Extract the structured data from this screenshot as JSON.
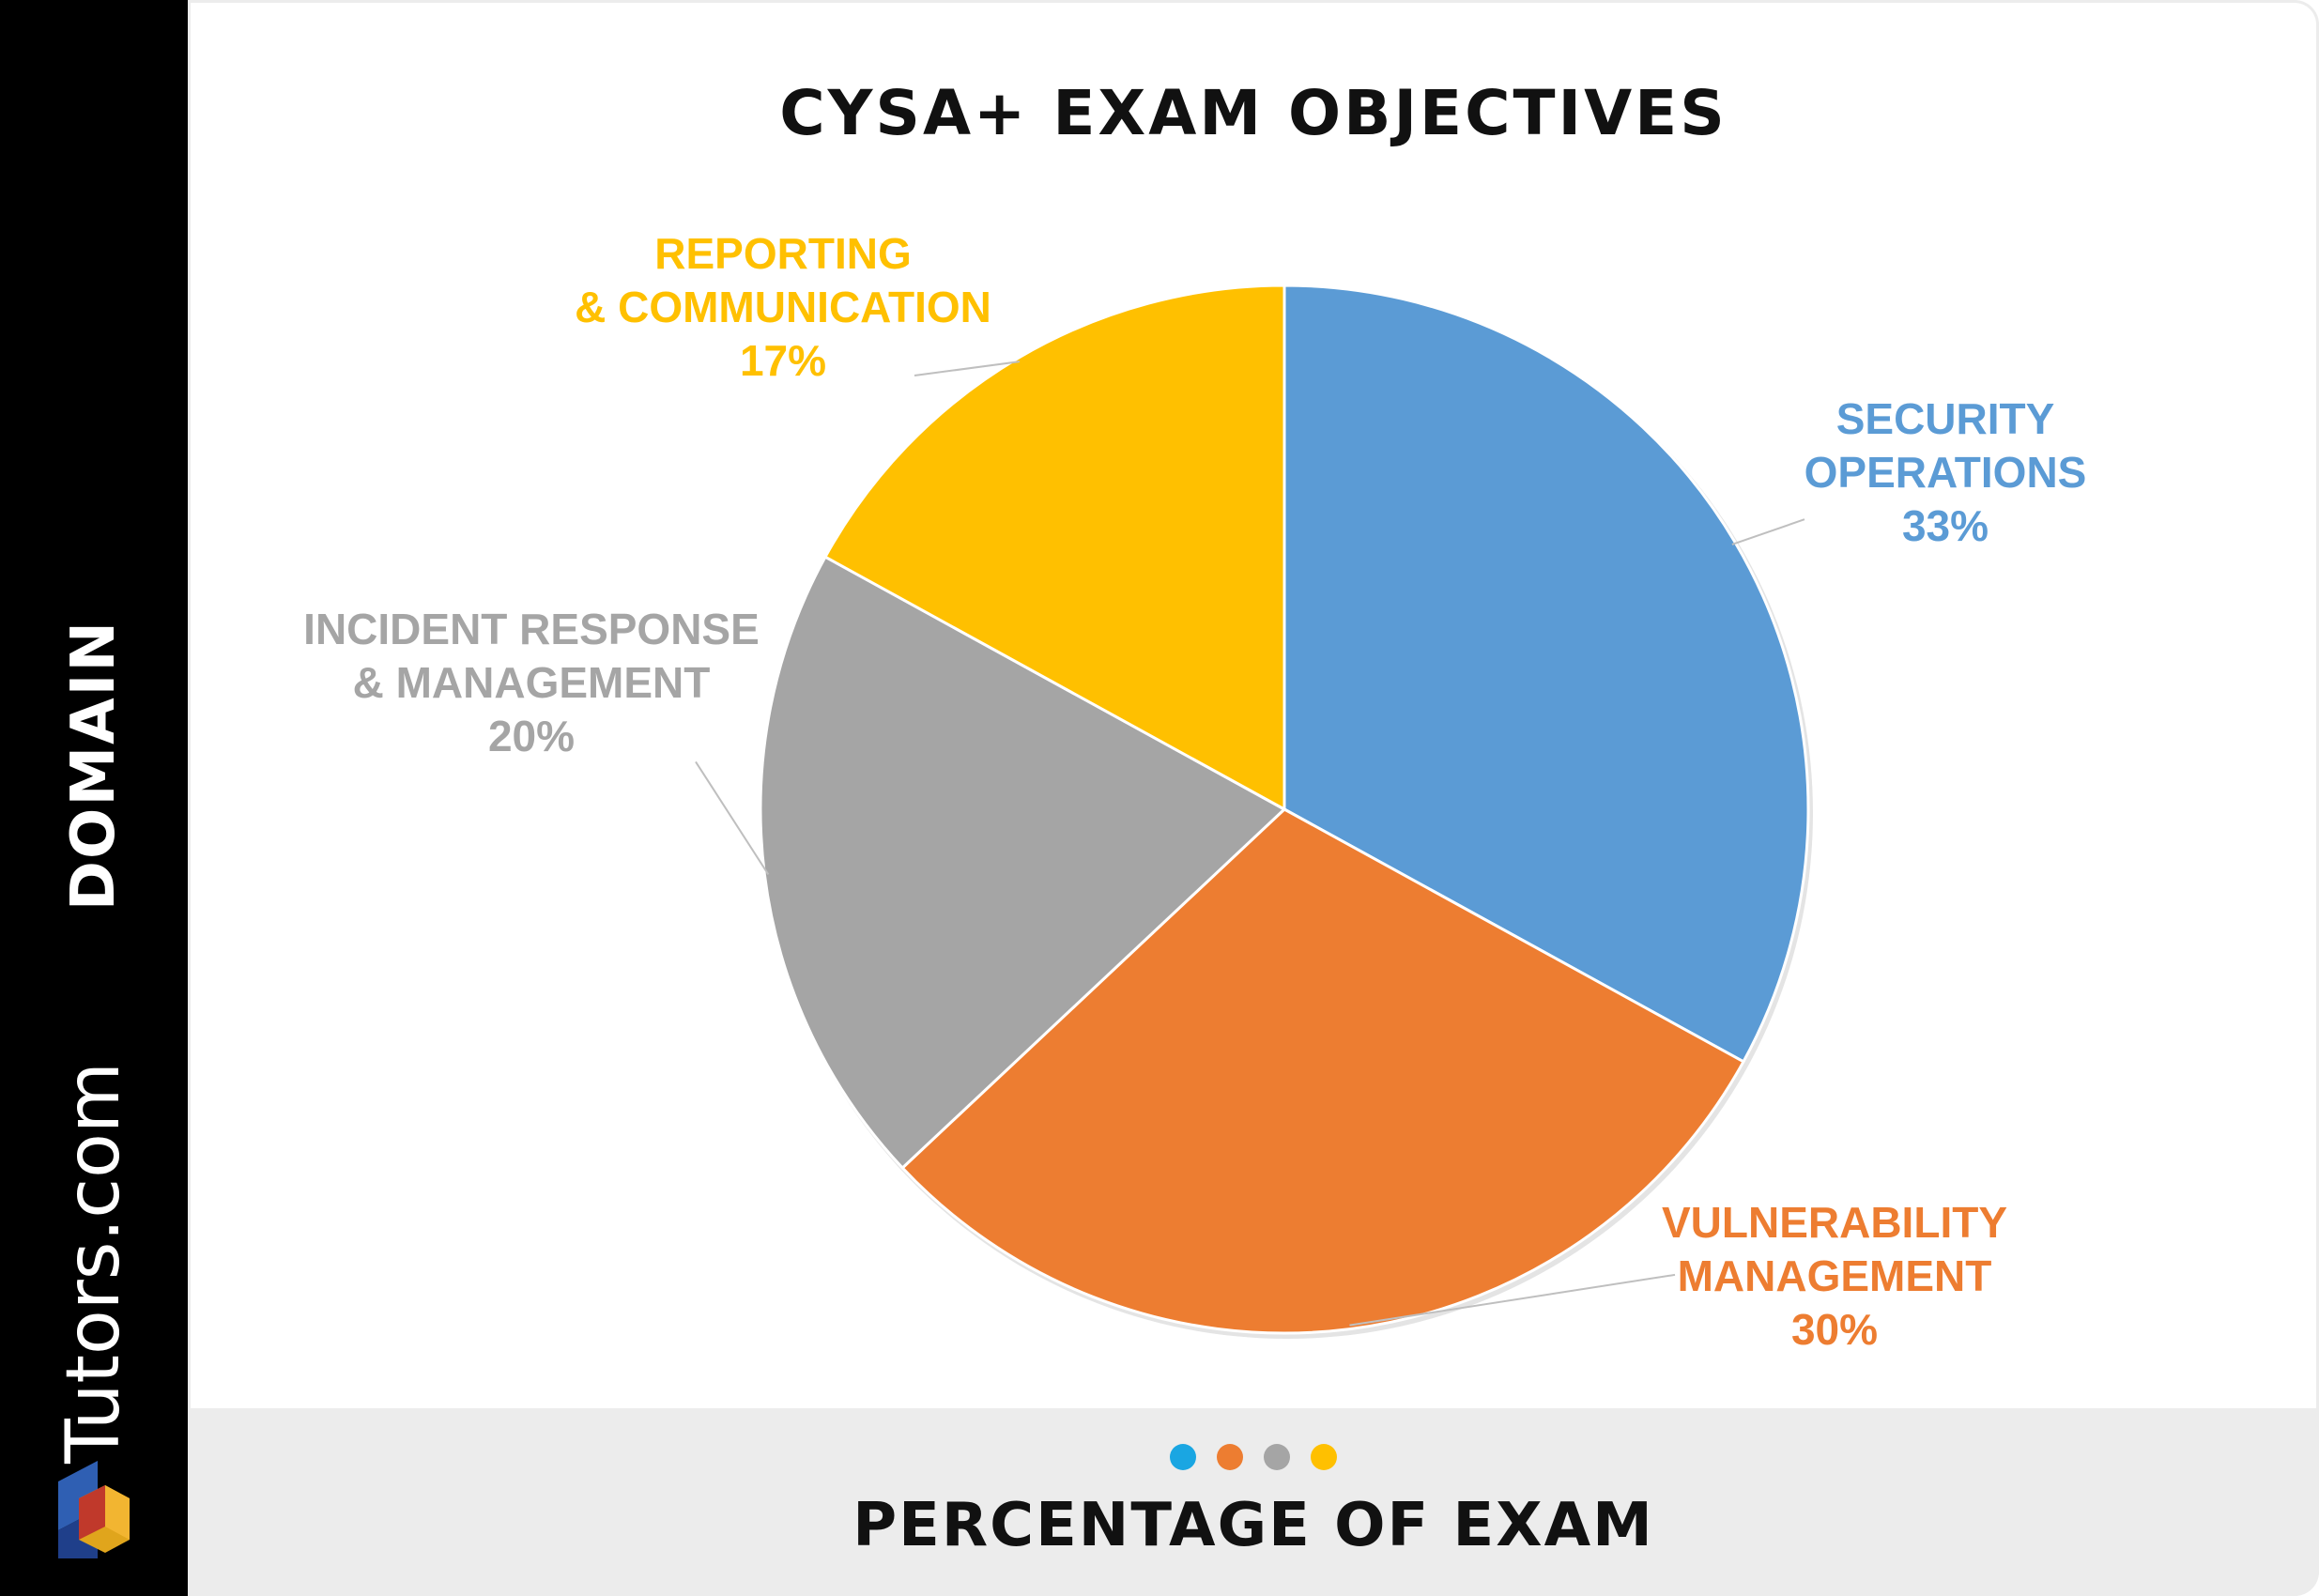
{
  "sidebar": {
    "axis_label": "DOMAIN",
    "brand": "Tutors.com",
    "logo_icon": "tutors-cube-logo-icon"
  },
  "chart_data": {
    "type": "pie",
    "title": "CYSA+ EXAM OBJECTIVES",
    "categories": [
      "SECURITY OPERATIONS",
      "VULNERABILITY MANAGEMENT",
      "INCIDENT RESPONSE & MANAGEMENT",
      "REPORTING & COMMUNICATION"
    ],
    "values": [
      33,
      30,
      20,
      17
    ],
    "slices": [
      {
        "label_lines": [
          "SECURITY",
          "OPERATIONS"
        ],
        "value": 33,
        "value_label": "33%",
        "color": "#5b9bd5"
      },
      {
        "label_lines": [
          "VULNERABILITY",
          "MANAGEMENT"
        ],
        "value": 30,
        "value_label": "30%",
        "color": "#ed7d31"
      },
      {
        "label_lines": [
          "INCIDENT RESPONSE",
          "& MANAGEMENT"
        ],
        "value": 20,
        "value_label": "20%",
        "color": "#a5a5a5"
      },
      {
        "label_lines": [
          "REPORTING",
          "& COMMUNICATION"
        ],
        "value": 17,
        "value_label": "17%",
        "color": "#ffc000"
      }
    ],
    "legend": "bottom",
    "legend_colors": [
      "#1aa6e2",
      "#ed7d31",
      "#a5a5a5",
      "#ffc000"
    ],
    "xlabel": "PERCENTAGE OF EXAM"
  }
}
